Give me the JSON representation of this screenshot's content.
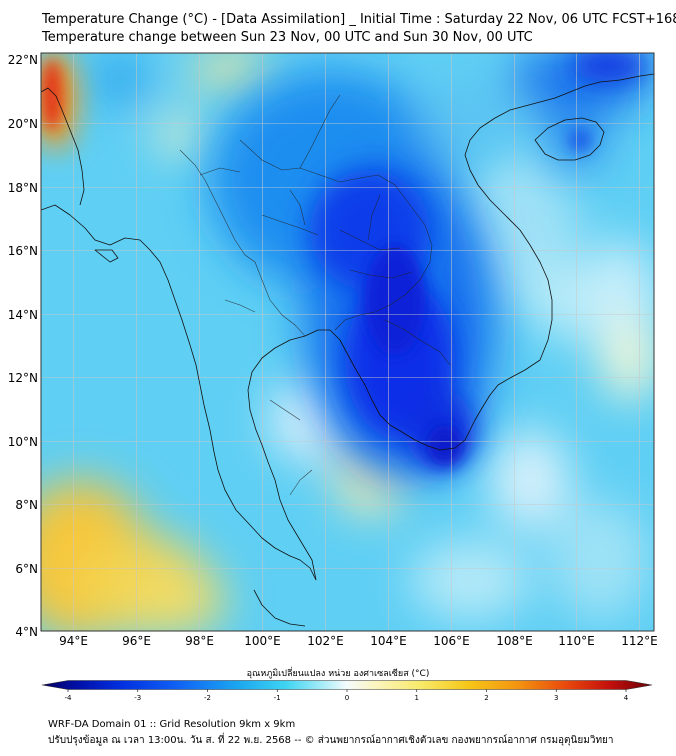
{
  "title": {
    "line1": "Temperature Change (°C) - [Data Assimilation] _ Initial Time : Saturday 22 Nov, 06 UTC FCST+168",
    "line2": "Temperature change between Sun 23 Nov, 00 UTC and Sun 30 Nov, 00 UTC"
  },
  "map": {
    "lat_labels": [
      "22°N",
      "20°N",
      "18°N",
      "16°N",
      "14°N",
      "12°N",
      "10°N",
      "8°N",
      "6°N",
      "4°N"
    ],
    "lon_labels": [
      "94°E",
      "96°E",
      "98°E",
      "100°E",
      "102°E",
      "104°E",
      "106°E",
      "108°E",
      "110°E",
      "112°E"
    ],
    "lat_range": [
      4,
      22
    ],
    "lon_range": [
      93,
      112.5
    ],
    "gridlines": true
  },
  "colorbar": {
    "label": "อุณหภูมิเปลี่ยนแปลง หน่วย องศาเซลเซียส (°C)",
    "ticks": [
      "-4",
      "-3",
      "-2",
      "-1",
      "0",
      "1",
      "2",
      "3",
      "4"
    ],
    "range": [
      -4,
      4
    ]
  },
  "footer": {
    "line1": "WRF-DA Domain 01 :: Grid Resolution 9km x 9km",
    "line2": "ปรับปรุงข้อมูล ณ เวลา 13:00น. วัน ส. ที่ 22 พ.ย. 2568 -- © ส่วนพยากรณ์อากาศเชิงตัวเลข กองพยากรณ์อากาศ กรมอุตุนิยมวิทยา"
  }
}
